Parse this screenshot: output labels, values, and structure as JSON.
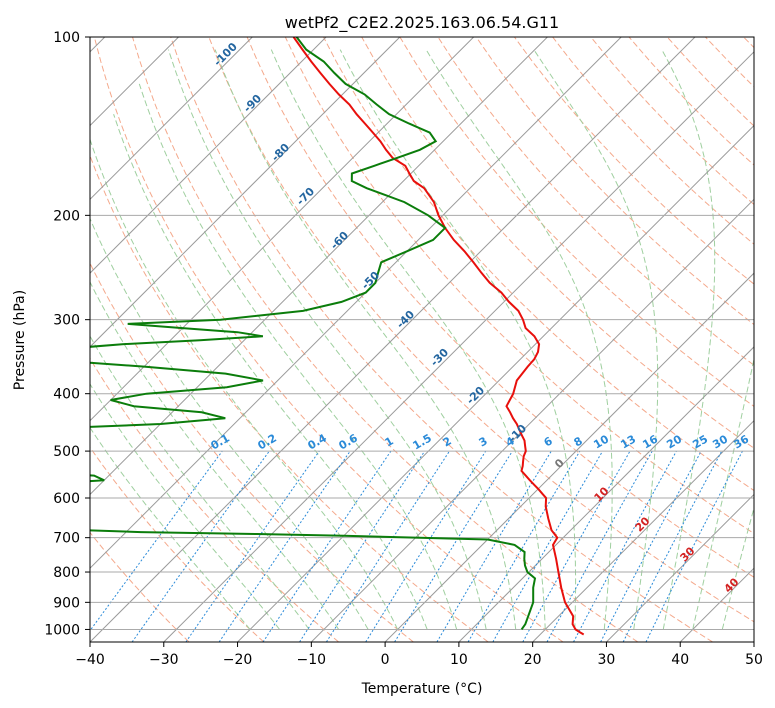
{
  "chart_data": {
    "type": "line",
    "chart_kind": "skew-T log-P diagram",
    "title": "wetPf2_C2E2.2025.163.06.54.G11",
    "xlabel": "Temperature (°C)",
    "ylabel": "Pressure (hPa)",
    "xlim": [
      -40,
      50
    ],
    "ylim": [
      1050,
      100
    ],
    "y_scale": "log",
    "x_ticks": [
      "−40",
      "−30",
      "−20",
      "−10",
      "0",
      "10",
      "20",
      "30",
      "40",
      "50"
    ],
    "y_ticks": [
      "100",
      "200",
      "300",
      "400",
      "500",
      "600",
      "700",
      "800",
      "900",
      "1000"
    ],
    "grid": true,
    "colors": {
      "temperature": "#e8100c",
      "dewpoint": "#0b7d0b",
      "isotherms": "#9a9a9a",
      "dry_adiabats": "#f4a98c",
      "moist_adiabats": "#9fcf9f",
      "mixing_ratio": "#2a8ad8",
      "isotherm_labels": "#2466a0",
      "moist_labels": "#d32222",
      "grid": "#aaaaaa"
    },
    "isotherm_labels": [
      "-100",
      "-90",
      "-80",
      "-70",
      "-60",
      "-50",
      "-40",
      "-30",
      "-20",
      "-10",
      "0"
    ],
    "mixing_ratio_labels": [
      "0.1",
      "0.2",
      "0.4",
      "0.6",
      "1",
      "1.5",
      "2",
      "3",
      "4",
      "6",
      "8",
      "10",
      "13",
      "16",
      "20",
      "25",
      "30",
      "36"
    ],
    "moist_adiabat_labels": [
      "10",
      "20",
      "30",
      "40"
    ],
    "series": [
      {
        "key": "temperature",
        "pressure": [
          1020,
          1010,
          1000,
          980,
          950,
          900,
          850,
          800,
          760,
          720,
          700,
          680,
          650,
          620,
          600,
          590,
          580,
          570,
          560,
          550,
          540,
          530,
          520,
          510,
          500,
          490,
          480,
          470,
          460,
          450,
          440,
          430,
          420,
          400,
          380,
          360,
          350,
          340,
          330,
          320,
          310,
          300,
          290,
          280,
          270,
          260,
          250,
          240,
          230,
          220,
          210,
          200,
          190,
          180,
          175,
          170,
          165,
          160,
          155,
          150,
          145,
          140,
          135,
          130,
          125,
          120,
          115,
          110,
          105,
          100
        ],
        "values": [
          25.9,
          25.0,
          24.1,
          23.0,
          22.0,
          19.0,
          16.5,
          14.0,
          11.9,
          9.6,
          9.2,
          7.4,
          5.4,
          3.4,
          2.3,
          1.2,
          0.1,
          -1.1,
          -2.3,
          -3.5,
          -4.7,
          -5.2,
          -5.8,
          -6.4,
          -6.8,
          -7.6,
          -8.4,
          -9.5,
          -10.6,
          -11.7,
          -13.0,
          -14.2,
          -15.5,
          -16.3,
          -17.6,
          -18.0,
          -18.1,
          -18.6,
          -19.5,
          -21.2,
          -23.5,
          -25.0,
          -26.8,
          -29.3,
          -31.6,
          -34.5,
          -37.0,
          -39.5,
          -42.2,
          -45.2,
          -48.0,
          -50.6,
          -53.0,
          -56.2,
          -58.6,
          -60.2,
          -61.8,
          -64.6,
          -66.6,
          -68.5,
          -70.7,
          -73.0,
          -75.4,
          -77.7,
          -80.5,
          -83.2,
          -85.9,
          -88.7,
          -91.5,
          -94.4
        ]
      },
      {
        "key": "dewpoint",
        "pressure": [
          1000,
          980,
          950,
          900,
          850,
          820,
          800,
          780,
          760,
          740,
          720,
          705,
          695,
          690,
          685,
          680,
          672,
          667,
          664,
          660,
          650,
          640,
          630,
          620,
          610,
          600,
          590,
          580,
          570,
          560,
          550,
          540,
          530,
          520,
          510,
          500,
          490,
          480,
          470,
          460,
          450,
          440,
          430,
          420,
          410,
          400,
          390,
          380,
          370,
          360,
          350,
          345,
          340,
          335,
          330,
          325,
          320,
          315,
          310,
          305,
          300,
          290,
          280,
          270,
          260,
          250,
          240,
          230,
          220,
          210,
          200,
          190,
          180,
          175,
          170,
          165,
          160,
          155,
          150,
          145,
          140,
          135,
          130,
          125,
          120,
          115,
          110,
          105,
          100
        ],
        "values": [
          16.8,
          16.6,
          15.9,
          14.7,
          12.7,
          11.7,
          9.8,
          8.6,
          7.6,
          6.7,
          4.4,
          0.0,
          -20.0,
          -32.0,
          -48.0,
          -56.0,
          -62.0,
          -64.0,
          -66.0,
          -66.0,
          -65.0,
          -70.0,
          -72.0,
          -75.0,
          -80.0,
          -82.0,
          -82.0,
          -78.0,
          -70.0,
          -60.0,
          -62.0,
          -72.0,
          -85.0,
          -90.0,
          -95.0,
          -98.0,
          -100.0,
          -98.0,
          -94.0,
          -78.0,
          -60.0,
          -52.0,
          -56.0,
          -66.0,
          -70.0,
          -66.0,
          -56.0,
          -52.0,
          -58.0,
          -70.0,
          -85.0,
          -90.0,
          -88.0,
          -82.0,
          -76.0,
          -66.0,
          -58.0,
          -62.0,
          -70.0,
          -78.0,
          -66.0,
          -56.0,
          -52.0,
          -50.0,
          -50.0,
          -51.0,
          -52.0,
          -50.0,
          -48.0,
          -48.0,
          -52.0,
          -57.0,
          -64.0,
          -67.0,
          -68.0,
          -66.0,
          -64.0,
          -62.0,
          -61.0,
          -63.0,
          -67.0,
          -71.0,
          -74.0,
          -77.0,
          -81.0,
          -84.0,
          -87.0,
          -91.0,
          -94.0
        ]
      }
    ]
  }
}
